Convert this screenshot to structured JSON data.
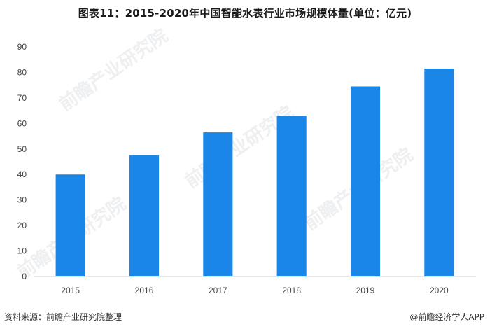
{
  "title": "图表11：2015-2020年中国智能水表行业市场规模体量(单位：亿元)",
  "watermark": "前瞻产业研究院",
  "footer": {
    "source": "资料来源：前瞻产业研究院整理",
    "brand": "@前瞻经济学人APP"
  },
  "colors": {
    "bar": "#1a86e8",
    "axis": "#cccccc"
  },
  "chart_data": {
    "type": "bar",
    "title": "图表11：2015-2020年中国智能水表行业市场规模体量(单位：亿元)",
    "categories": [
      "2015",
      "2016",
      "2017",
      "2018",
      "2019",
      "2020"
    ],
    "values": [
      40,
      47.5,
      56.5,
      63,
      74.5,
      81.5
    ],
    "ylim": [
      0,
      90
    ],
    "yticks": [
      0,
      10,
      20,
      30,
      40,
      50,
      60,
      70,
      80,
      90
    ],
    "grid": false,
    "xlabel": "",
    "ylabel": ""
  }
}
